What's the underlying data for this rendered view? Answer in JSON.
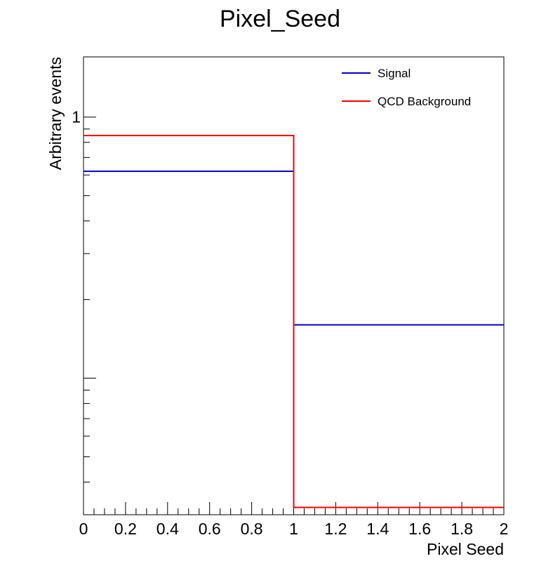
{
  "chart_data": {
    "type": "line",
    "title": "Pixel_Seed",
    "xlabel": "Pixel Seed",
    "ylabel": "Arbitrary events",
    "xlim": [
      0,
      2
    ],
    "ylim": [
      0.03,
      1.7
    ],
    "y_scale": "log",
    "grid": false,
    "legend_position": "top-right",
    "x_tick_labels": [
      "0",
      "0.2",
      "0.4",
      "0.6",
      "0.8",
      "1",
      "1.2",
      "1.4",
      "1.6",
      "1.8",
      "2"
    ],
    "y_tick_labels": [
      "1"
    ],
    "bin_edges": [
      0,
      1,
      2
    ],
    "series": [
      {
        "name": "Signal",
        "color": "#0000cc",
        "values": [
          0.62,
          0.16
        ]
      },
      {
        "name": "QCD Background",
        "color": "#ff0000",
        "values": [
          0.85,
          0.032
        ]
      }
    ]
  }
}
